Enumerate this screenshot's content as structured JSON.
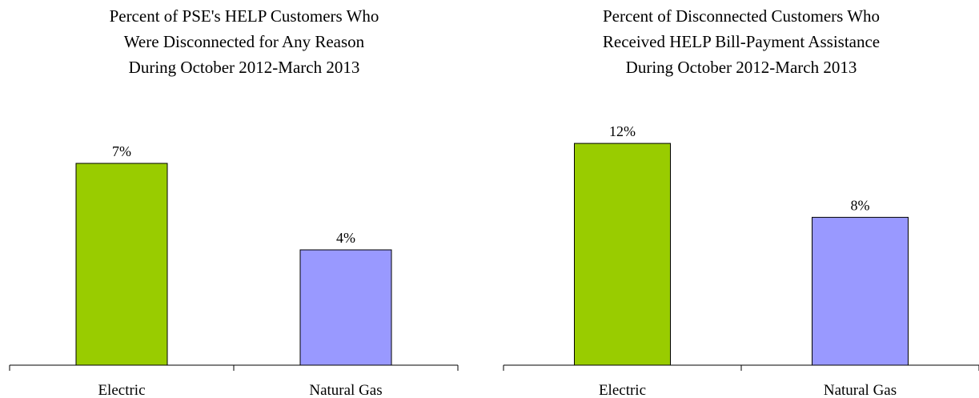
{
  "chart_data": [
    {
      "type": "bar",
      "title_lines": [
        "Percent of PSE's HELP Customers Who",
        "Were Disconnected  for Any Reason",
        "During  October 2012-March 2013"
      ],
      "categories": [
        "Electric",
        "Natural Gas"
      ],
      "values": [
        7,
        4
      ],
      "data_labels": [
        "7%",
        "4%"
      ],
      "colors": [
        "#99cc00",
        "#9999ff"
      ],
      "ylim": [
        0,
        10
      ],
      "xlabel": "",
      "ylabel": "",
      "grid": false
    },
    {
      "type": "bar",
      "title_lines": [
        "Percent of Disconnected  Customers Who",
        "Received  HELP Bill-Payment  Assistance",
        "During  October 2012-March 2013"
      ],
      "categories": [
        "Electric",
        "Natural Gas"
      ],
      "values": [
        12,
        8
      ],
      "data_labels": [
        "12%",
        "8%"
      ],
      "colors": [
        "#99cc00",
        "#9999ff"
      ],
      "ylim": [
        0,
        15.6
      ],
      "xlabel": "",
      "ylabel": "",
      "grid": false
    }
  ]
}
